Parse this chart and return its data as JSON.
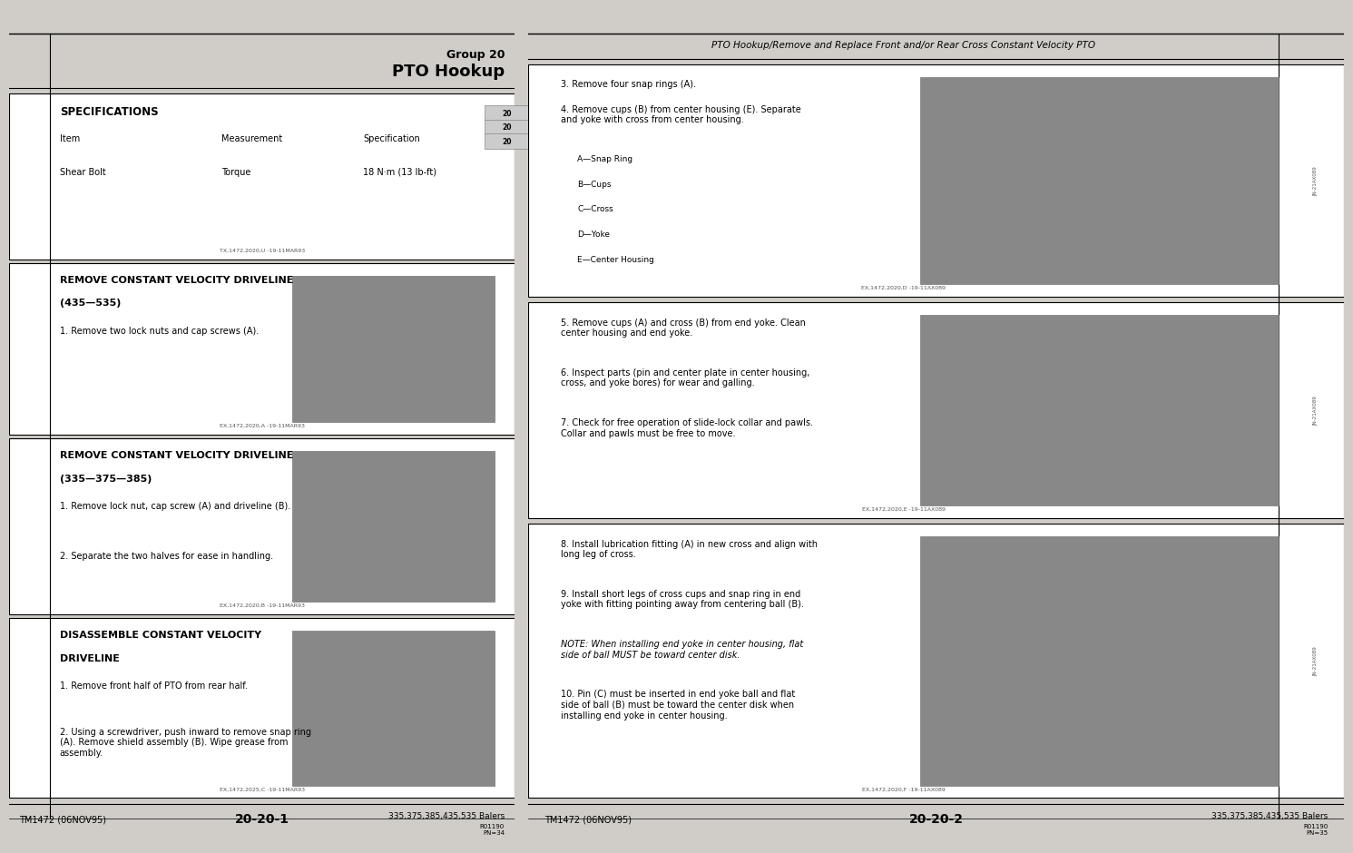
{
  "bg_color": "#d0cdc8",
  "page_bg": "#ffffff",
  "left_page": {
    "header_title": "Group 20",
    "header_subtitle": "PTO Hookup",
    "specs_title": "SPECIFICATIONS",
    "spec_col1": "Item",
    "spec_col2": "Measurement",
    "spec_col3": "Specification",
    "spec_row": [
      "Shear Bolt",
      "Torque",
      "18 N·m (13 lb-ft)"
    ],
    "spec_footnote": "TX,1472,2020,U -19-11MAR93",
    "sec1_title": "REMOVE CONSTANT VELOCITY DRIVELINE\n(435—535)",
    "sec1_steps": [
      "1. Remove two lock nuts and cap screws (A)."
    ],
    "sec1_footnote": "EX,1472,2020,A -19-11MAR93",
    "sec2_title": "REMOVE CONSTANT VELOCITY DRIVELINE\n(335—375—385)",
    "sec2_steps": [
      "1. Remove lock nut, cap screw (A) and driveline (B).",
      "2. Separate the two halves for ease in handling."
    ],
    "sec2_footnote": "EX,1472,2020,B -19-11MAR93",
    "sec3_title": "DISASSEMBLE CONSTANT VELOCITY\nDRIVELINE",
    "sec3_steps": [
      "1. Remove front half of PTO from rear half.",
      "2. Using a screwdriver, push inward to remove snap ring\n(A). Remove shield assembly (B). Wipe grease from\nassembly."
    ],
    "sec3_footnote": "EX,1472,2025,C -19-11MAR93",
    "footer_left": "TM1472 (06NOV95)",
    "footer_center": "20-20-1",
    "footer_right": "335,375,385,435,535 Balers",
    "footer_extra": "R01190\nPN=34",
    "tab_numbers": [
      "20",
      "20",
      "20"
    ]
  },
  "right_page": {
    "header_italic": "PTO Hookup/Remove and Replace Front and/or Rear Cross Constant Velocity PTO",
    "rsec1_steps": [
      "3. Remove four snap rings (A).",
      "4. Remove cups (B) from center housing (E). Separate\nand yoke with cross from center housing."
    ],
    "rsec1_legend": [
      "A—Snap Ring",
      "B—Cups",
      "C—Cross",
      "D—Yoke",
      "E—Center Housing"
    ],
    "rsec1_footnote": "EX,1472,2020,D -19-11AX089",
    "rsec2_steps": [
      "5. Remove cups (A) and cross (B) from end yoke. Clean\ncenter housing and end yoke.",
      "6. Inspect parts (pin and center plate in center housing,\ncross, and yoke bores) for wear and galling.",
      "7. Check for free operation of slide-lock collar and pawls.\nCollar and pawls must be free to move."
    ],
    "rsec2_footnote": "EX,1472,2020,E -19-11AX089",
    "rsec3_steps": [
      "8. Install lubrication fitting (A) in new cross and align with\nlong leg of cross.",
      "9. Install short legs of cross cups and snap ring in end\nyoke with fitting pointing away from centering ball (B).",
      "NOTE: When installing end yoke in center housing, flat\nside of ball MUST be toward center disk.",
      "10. Pin (C) must be inserted in end yoke ball and flat\nside of ball (B) must be toward the center disk when\ninstalling end yoke in center housing."
    ],
    "rsec3_footnote": "EX,1472,2020,F -19-11AX089",
    "footer_left": "TM1472 (06NOV95)",
    "footer_center": "20-20-2",
    "footer_right": "335,375,385,435,535 Balers",
    "footer_extra": "R01190\nPN=35"
  }
}
